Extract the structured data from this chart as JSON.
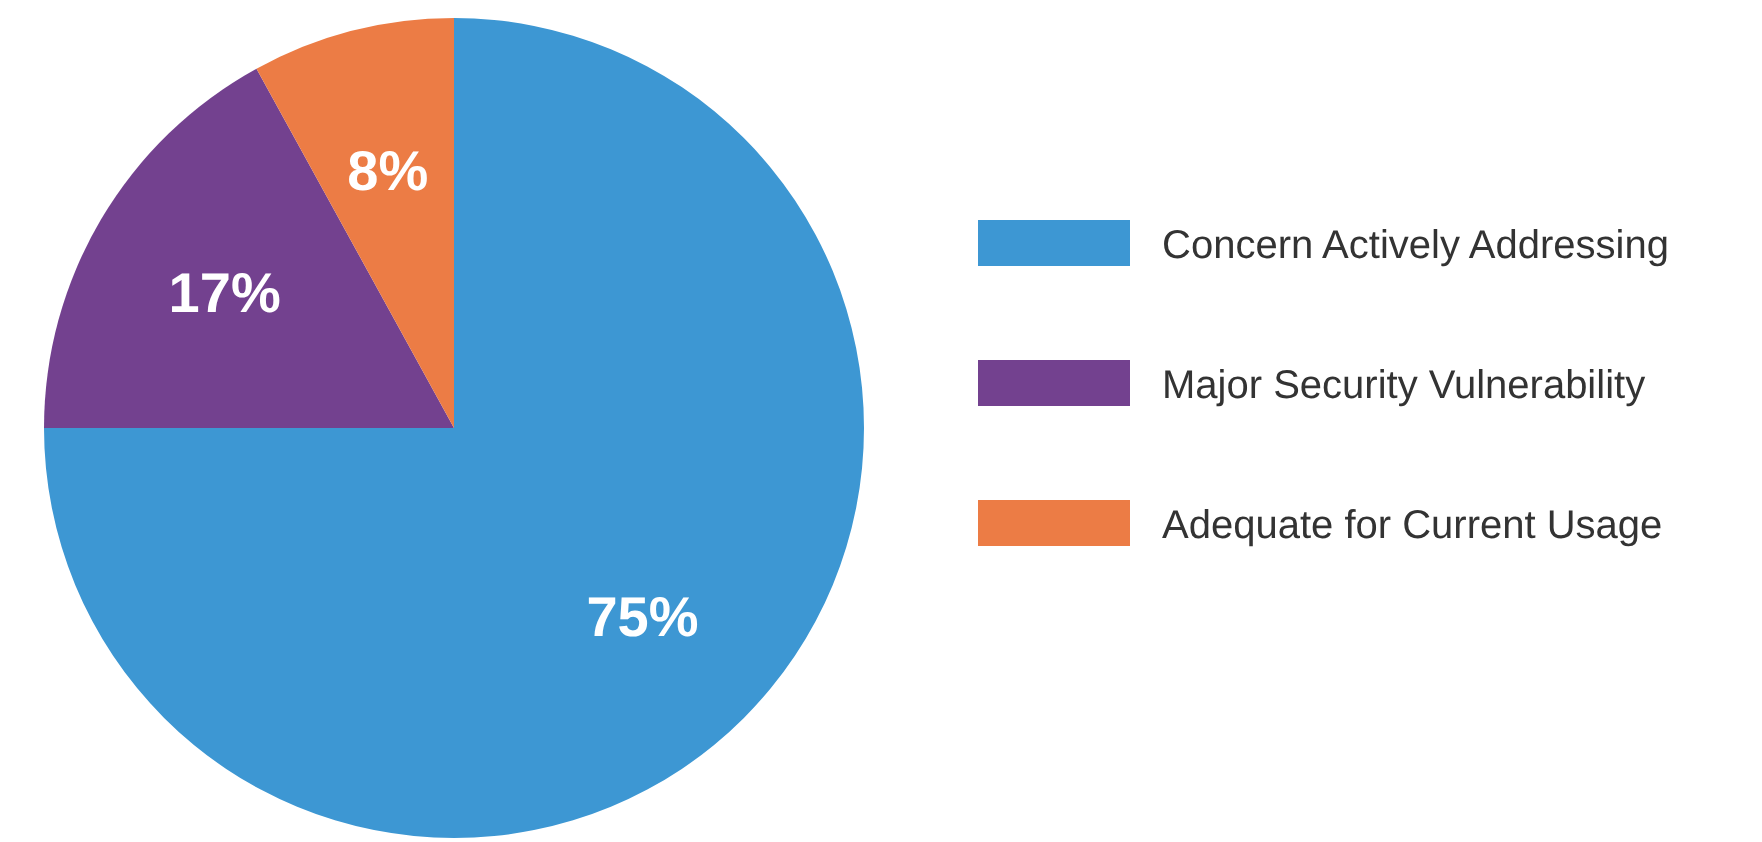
{
  "chart_data": {
    "type": "pie",
    "categories": [
      "Concern Actively Addressing",
      "Major Security Vulnerability",
      "Adequate for Current Usage"
    ],
    "values": [
      75,
      17,
      8
    ],
    "colors": [
      "#3d97d3",
      "#73418f",
      "#ec7c45"
    ],
    "value_labels": [
      "75%",
      "17%",
      "8%"
    ],
    "legend": "right"
  }
}
